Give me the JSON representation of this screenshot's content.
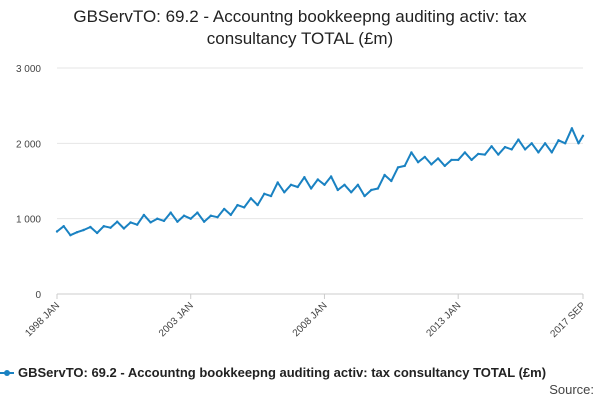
{
  "title_lines": [
    "GBServTO: 69.2 - Accountng bookkeepng auditing activ: tax",
    "consultancy TOTAL (£m)"
  ],
  "legend_label": "GBServTO: 69.2 - Accountng bookkeepng auditing activ: tax consultancy TOTAL (£m)",
  "source_label": "Source:",
  "colors": {
    "series": "#1a82c2",
    "grid": "#e6e6e6",
    "axis": "#cccccc"
  },
  "chart_data": {
    "type": "line",
    "title": "GBServTO: 69.2 - Accountng bookkeepng auditing activ: tax consultancy TOTAL (£m)",
    "xlabel": "",
    "ylabel": "",
    "ylim": [
      0,
      3000
    ],
    "y_ticks": [
      {
        "value": 0,
        "label": "0"
      },
      {
        "value": 1000,
        "label": "1 000"
      },
      {
        "value": 2000,
        "label": "2 000"
      },
      {
        "value": 3000,
        "label": "3 000"
      }
    ],
    "x_ticks": [
      {
        "date": "1998-01",
        "label": "1998 JAN"
      },
      {
        "date": "2003-01",
        "label": "2003 JAN"
      },
      {
        "date": "2008-01",
        "label": "2008 JAN"
      },
      {
        "date": "2013-01",
        "label": "2013 JAN"
      },
      {
        "date": "2017-09",
        "label": "2017 SEP"
      }
    ],
    "grid": true,
    "legend_position": "bottom",
    "series": [
      {
        "name": "GBServTO: 69.2 - Accountng bookkeepng auditing activ: tax consultancy TOTAL (£m)",
        "points": [
          [
            "1998-01",
            830
          ],
          [
            "1998-04",
            900
          ],
          [
            "1998-07",
            780
          ],
          [
            "1998-10",
            820
          ],
          [
            "1999-01",
            850
          ],
          [
            "1999-04",
            890
          ],
          [
            "1999-07",
            810
          ],
          [
            "1999-10",
            900
          ],
          [
            "2000-01",
            880
          ],
          [
            "2000-04",
            960
          ],
          [
            "2000-07",
            870
          ],
          [
            "2000-10",
            950
          ],
          [
            "2001-01",
            920
          ],
          [
            "2001-04",
            1050
          ],
          [
            "2001-07",
            950
          ],
          [
            "2001-10",
            1000
          ],
          [
            "2002-01",
            970
          ],
          [
            "2002-04",
            1080
          ],
          [
            "2002-07",
            960
          ],
          [
            "2002-10",
            1040
          ],
          [
            "2003-01",
            1000
          ],
          [
            "2003-04",
            1080
          ],
          [
            "2003-07",
            960
          ],
          [
            "2003-10",
            1040
          ],
          [
            "2004-01",
            1020
          ],
          [
            "2004-04",
            1130
          ],
          [
            "2004-07",
            1050
          ],
          [
            "2004-10",
            1180
          ],
          [
            "2005-01",
            1150
          ],
          [
            "2005-04",
            1270
          ],
          [
            "2005-07",
            1180
          ],
          [
            "2005-10",
            1330
          ],
          [
            "2006-01",
            1300
          ],
          [
            "2006-04",
            1480
          ],
          [
            "2006-07",
            1350
          ],
          [
            "2006-10",
            1450
          ],
          [
            "2007-01",
            1420
          ],
          [
            "2007-04",
            1550
          ],
          [
            "2007-07",
            1400
          ],
          [
            "2007-10",
            1520
          ],
          [
            "2008-01",
            1450
          ],
          [
            "2008-04",
            1560
          ],
          [
            "2008-07",
            1380
          ],
          [
            "2008-10",
            1450
          ],
          [
            "2009-01",
            1350
          ],
          [
            "2009-04",
            1450
          ],
          [
            "2009-07",
            1300
          ],
          [
            "2009-10",
            1380
          ],
          [
            "2010-01",
            1400
          ],
          [
            "2010-04",
            1580
          ],
          [
            "2010-07",
            1500
          ],
          [
            "2010-10",
            1680
          ],
          [
            "2011-01",
            1700
          ],
          [
            "2011-04",
            1880
          ],
          [
            "2011-07",
            1750
          ],
          [
            "2011-10",
            1820
          ],
          [
            "2012-01",
            1720
          ],
          [
            "2012-04",
            1800
          ],
          [
            "2012-07",
            1700
          ],
          [
            "2012-10",
            1780
          ],
          [
            "2013-01",
            1780
          ],
          [
            "2013-04",
            1880
          ],
          [
            "2013-07",
            1780
          ],
          [
            "2013-10",
            1860
          ],
          [
            "2014-01",
            1850
          ],
          [
            "2014-04",
            1960
          ],
          [
            "2014-07",
            1850
          ],
          [
            "2014-10",
            1950
          ],
          [
            "2015-01",
            1920
          ],
          [
            "2015-04",
            2050
          ],
          [
            "2015-07",
            1920
          ],
          [
            "2015-10",
            2000
          ],
          [
            "2016-01",
            1880
          ],
          [
            "2016-04",
            2000
          ],
          [
            "2016-07",
            1880
          ],
          [
            "2016-10",
            2040
          ],
          [
            "2017-01",
            2000
          ],
          [
            "2017-04",
            2200
          ],
          [
            "2017-07",
            2000
          ],
          [
            "2017-09",
            2100
          ]
        ]
      }
    ]
  }
}
